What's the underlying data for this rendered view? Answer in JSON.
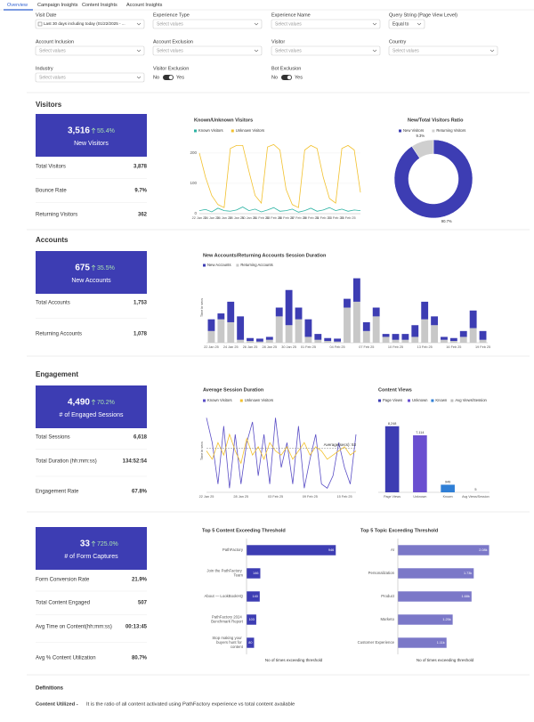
{
  "tabs": [
    "Overview",
    "Campaign Insights",
    "Content Insights",
    "Account Insights"
  ],
  "filters": [
    {
      "label": "Visit Date",
      "value": "Last 30 days including today (01/22/2025 - ..."
    },
    {
      "label": "Experience Type",
      "value": "Select values"
    },
    {
      "label": "Experience Name",
      "value": "Select values"
    },
    {
      "label": "Query String (Page View Level)",
      "value": "Equal to"
    },
    {
      "label": "Account Inclusion",
      "value": "Select values"
    },
    {
      "label": "Account Exclusion",
      "value": "Select values"
    },
    {
      "label": "Visitor",
      "value": "Select values"
    },
    {
      "label": "Country",
      "value": "Select values"
    },
    {
      "label": "Industry",
      "value": "Select values"
    }
  ],
  "toggles": [
    {
      "label": "Visitor Exclusion",
      "options": [
        "No",
        "Yes"
      ]
    },
    {
      "label": "Bot Exclusion",
      "options": [
        "No",
        "Yes"
      ]
    }
  ],
  "sections": [
    {
      "title": "Visitors",
      "value": "3,516",
      "delta": "55.4%",
      "label": "New Visitors",
      "rows": [
        {
          "label": "Total Visitors",
          "value": "3,878"
        },
        {
          "label": "Bounce Rate",
          "value": "9.7%"
        },
        {
          "label": "Returning Visitors",
          "value": "362"
        }
      ]
    },
    {
      "title": "Accounts",
      "value": "675",
      "delta": "35.5%",
      "label": "New Accounts",
      "rows": [
        {
          "label": "Total Accounts",
          "value": "1,753"
        },
        {
          "label": "Returning Accounts",
          "value": "1,078"
        }
      ]
    },
    {
      "title": "Engagement",
      "value": "4,490",
      "delta": "70.2%",
      "label": "# of Engaged Sessions",
      "rows": [
        {
          "label": "Total Sessions",
          "value": "6,618"
        },
        {
          "label": "Total Duration (hh:mm:ss)",
          "value": "134:52:54"
        },
        {
          "label": "Engagement Rate",
          "value": "67.8%"
        }
      ]
    },
    {
      "value": "33",
      "delta": "725.0%",
      "label": "# of Form Captures",
      "rows": [
        {
          "label": "Form Conversion Rate",
          "value": "21.9%"
        },
        {
          "label": "Total Content Engaged",
          "value": "507"
        },
        {
          "label": "Avg Time on Content(hh:mm:ss)",
          "value": "00:13:45"
        },
        {
          "label": "Avg % Content Utilization",
          "value": "80.7%"
        }
      ]
    }
  ],
  "chart_data": [
    {
      "type": "line",
      "title": "Known/Unknown Visitors",
      "categories": [
        "22 Jan 25",
        null,
        "24 Jan 25",
        null,
        "26 Jan 25",
        null,
        "28 Jan 25",
        null,
        "30 Jan 25",
        null,
        "01 Feb 25",
        null,
        "03 Feb 25",
        null,
        "05 Feb 25",
        null,
        "07 Feb 25",
        null,
        "09 Feb 25",
        null,
        "11 Feb 25",
        null,
        "13 Feb 25",
        null,
        "15 Feb 25",
        null,
        null
      ],
      "series": [
        {
          "name": "Known Visitors",
          "color": "#2bb3a3",
          "values": [
            10,
            14,
            6,
            18,
            10,
            8,
            12,
            22,
            10,
            15,
            6,
            12,
            20,
            8,
            10,
            15,
            5,
            10,
            18,
            8,
            12,
            20,
            10,
            15,
            8,
            12,
            10
          ]
        },
        {
          "name": "Unknown Visitors",
          "color": "#f2c12e",
          "values": [
            200,
            120,
            60,
            30,
            20,
            215,
            225,
            225,
            140,
            60,
            35,
            220,
            228,
            210,
            80,
            30,
            20,
            210,
            225,
            215,
            120,
            50,
            35,
            215,
            225,
            210,
            70
          ]
        }
      ],
      "ylim": [
        0,
        235
      ],
      "yticks": [
        0,
        100,
        200
      ]
    },
    {
      "type": "pie",
      "title": "New/Total Visitors Ratio",
      "categories": [
        "New Visitors",
        "Returning Visitors"
      ],
      "values": [
        90.7,
        9.3
      ],
      "value_labels": [
        "90.7%",
        "9.3%"
      ],
      "colors": [
        "#3d3db3",
        "#cfcfcf"
      ],
      "donut": true
    },
    {
      "type": "bar",
      "stacked": true,
      "title": "New Accounts/Returning Accounts Session Duration",
      "ylabel": "Time in secs",
      "categories": [
        "22 Jan 25",
        null,
        "24 Jan 25",
        null,
        "26 Jan 25",
        null,
        "28 Jan 25",
        null,
        "30 Jan 25",
        null,
        "01 Feb 25",
        null,
        null,
        "04 Feb 25",
        null,
        null,
        "07 Feb 25",
        null,
        null,
        "10 Feb 25",
        null,
        null,
        "13 Feb 25",
        null,
        null,
        "16 Feb 25",
        null,
        null,
        "19 Feb 25"
      ],
      "series": [
        {
          "name": "New Accounts",
          "color": "#3d3db3",
          "values": [
            20,
            10,
            35,
            40,
            5,
            5,
            5,
            15,
            60,
            20,
            30,
            10,
            5,
            5,
            15,
            40,
            15,
            15,
            5,
            10,
            10,
            20,
            30,
            15,
            5,
            5,
            10,
            30,
            15
          ]
        },
        {
          "name": "Returning Accounts",
          "color": "#c8c8c8",
          "values": [
            20,
            40,
            35,
            5,
            3,
            2,
            5,
            45,
            30,
            40,
            10,
            5,
            3,
            2,
            60,
            70,
            20,
            45,
            10,
            5,
            5,
            10,
            40,
            30,
            5,
            3,
            10,
            25,
            5
          ]
        }
      ],
      "ylim": [
        0,
        120
      ]
    },
    {
      "type": "line",
      "title": "Average Session Duration",
      "ylabel": "Time in secs",
      "categories": [
        "22 Jan 25",
        null,
        null,
        null,
        null,
        null,
        "28 Jan 25",
        null,
        null,
        null,
        null,
        null,
        "03 Feb 25",
        null,
        null,
        null,
        null,
        null,
        "09 Feb 25",
        null,
        null,
        null,
        null,
        null,
        "15 Feb 25",
        null,
        null
      ],
      "series": [
        {
          "name": "Known Visitors",
          "color": "#5b4fc6",
          "values": [
            90,
            60,
            10,
            80,
            5,
            70,
            10,
            60,
            85,
            20,
            70,
            10,
            90,
            30,
            60,
            10,
            80,
            5,
            40,
            70,
            10,
            5,
            20,
            60,
            30,
            10,
            70
          ]
        },
        {
          "name": "Unknown Visitors",
          "color": "#f2c12e",
          "values": [
            50,
            40,
            60,
            45,
            70,
            50,
            35,
            65,
            45,
            55,
            40,
            60,
            50,
            45,
            55,
            40,
            50,
            60,
            45,
            55,
            50,
            40,
            45,
            50,
            55,
            45,
            50
          ]
        }
      ],
      "annotation": {
        "label": "Average(secs): 53",
        "value": 53
      },
      "ylim": [
        0,
        100
      ]
    },
    {
      "type": "bar",
      "title": "Content Views",
      "categories": [
        "Page Views",
        "Unknown",
        "Known",
        "Avg Views/Session"
      ],
      "values": [
        8248,
        7114,
        949,
        5
      ],
      "value_labels": [
        "8,248",
        "7,114",
        "949",
        "5"
      ],
      "colors": [
        "#3d3db3",
        "#6a4fd0",
        "#2f7fd6",
        "#bdbdbd"
      ],
      "ylim": [
        0,
        9000
      ]
    },
    {
      "type": "barh",
      "title": "Top 5 Content Exceeding Threshold",
      "xlabel": "No of times exceeding threshold",
      "categories": [
        "PathFactory",
        "Join the PathFactory Team",
        "About — LookBookHQ",
        "PathFactory 2024 Benchmark Report",
        "Stop making your buyers hunt for content"
      ],
      "values": [
        946,
        146,
        140,
        103,
        80
      ],
      "color": "#3d3db3",
      "xlim": [
        0,
        1000
      ]
    },
    {
      "type": "barh",
      "title": "Top 5 Topic Exceeding Threshold",
      "xlabel": "No of times exceeding threshold",
      "categories": [
        "AI",
        "Personalization",
        "Product",
        "Marketo",
        "Customer Experience"
      ],
      "values": [
        2080,
        1730,
        1680,
        1250,
        1110
      ],
      "value_labels": [
        "2.08k",
        "1.73k",
        "1.68k",
        "1.25k",
        "1.11k"
      ],
      "color": "#7b78c8",
      "xlim": [
        0,
        2150
      ]
    }
  ],
  "definitions": {
    "title": "Definitions",
    "term": "Content Utilized -",
    "text": "It is the ratio of all content activated using PathFactory experience vs total content available"
  }
}
